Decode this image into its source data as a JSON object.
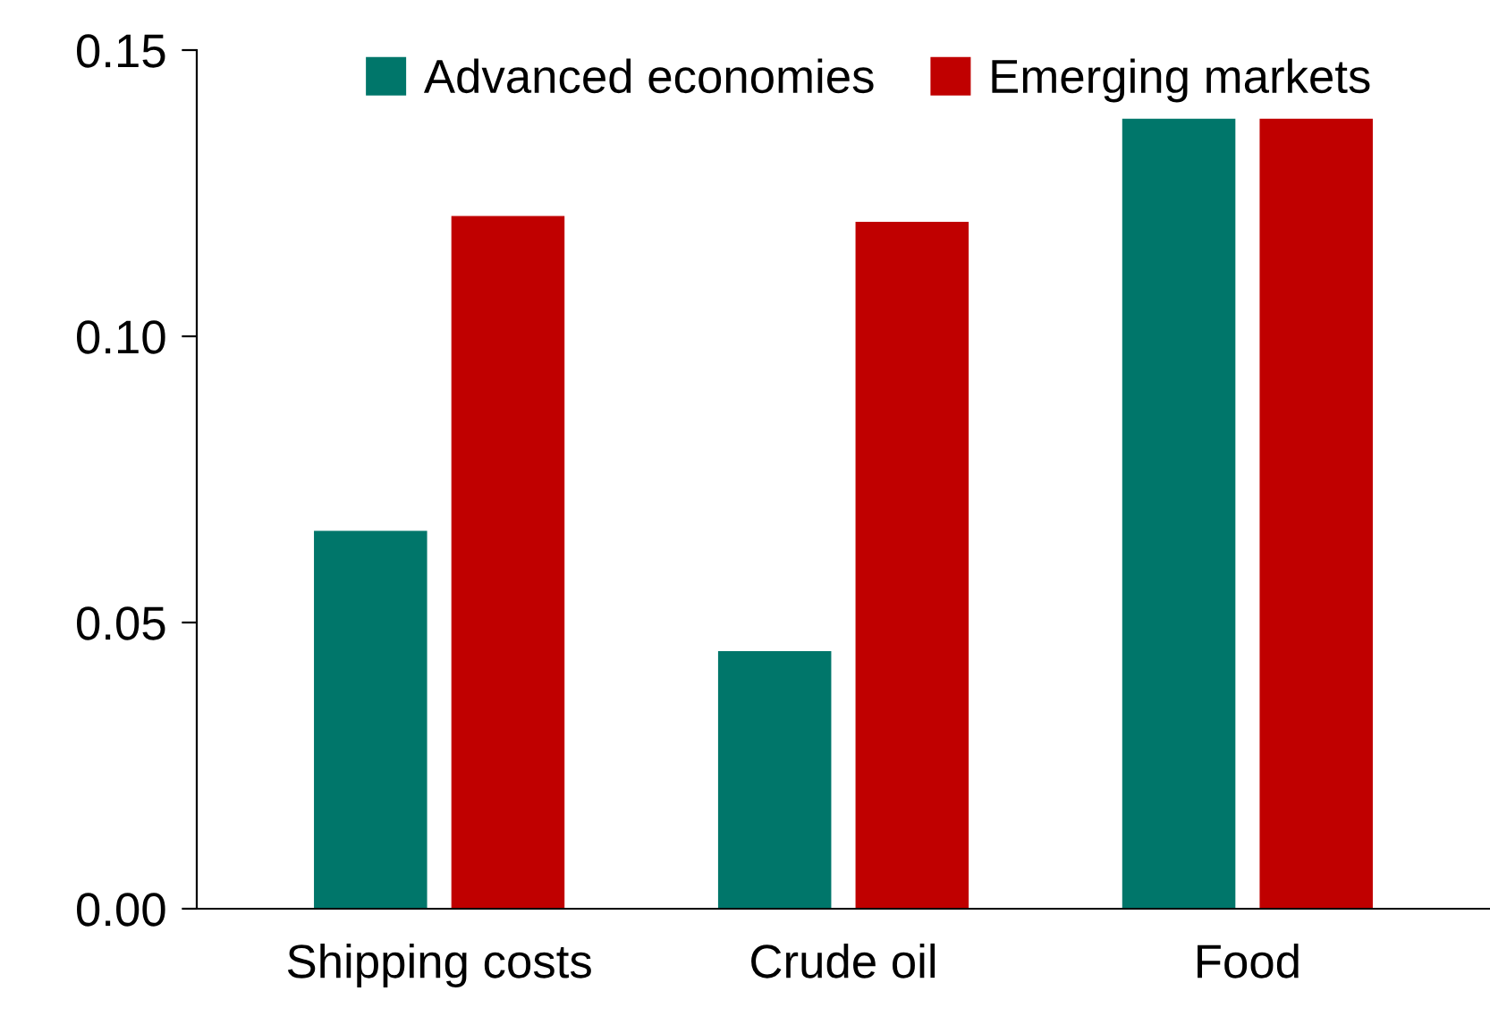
{
  "chart_data": {
    "type": "bar",
    "categories": [
      "Shipping costs",
      "Crude oil",
      "Food"
    ],
    "series": [
      {
        "name": "Advanced economies",
        "color": "#00766a",
        "values": [
          0.066,
          0.045,
          0.138
        ]
      },
      {
        "name": "Emerging markets",
        "color": "#c00000",
        "values": [
          0.121,
          0.12,
          0.138
        ]
      }
    ],
    "ylim": [
      0,
      0.15
    ],
    "yticks": [
      {
        "value": 0,
        "label": "0.00"
      },
      {
        "value": 0.05,
        "label": "0.05"
      },
      {
        "value": 0.1,
        "label": "0.10"
      },
      {
        "value": 0.15,
        "label": "0.15"
      }
    ],
    "grid": false,
    "legend": "top"
  }
}
